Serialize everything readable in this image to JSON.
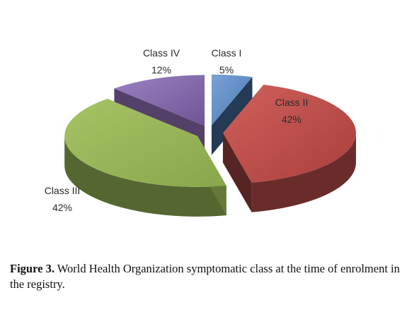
{
  "chart_data": {
    "type": "pie",
    "categories": [
      "Class I",
      "Class II",
      "Class III",
      "Class IV"
    ],
    "values": [
      5,
      42,
      42,
      12
    ],
    "labels": [
      "5%",
      "42%",
      "42%",
      "12%"
    ],
    "colors": [
      "#4f81bd",
      "#c0504d",
      "#9bbb59",
      "#8064a2"
    ],
    "style": "3d-exploded",
    "legend": "none"
  },
  "caption": {
    "figure_label": "Figure 3.",
    "text": "World Health Organization symptomatic class at the time of enrolment in the registry."
  }
}
